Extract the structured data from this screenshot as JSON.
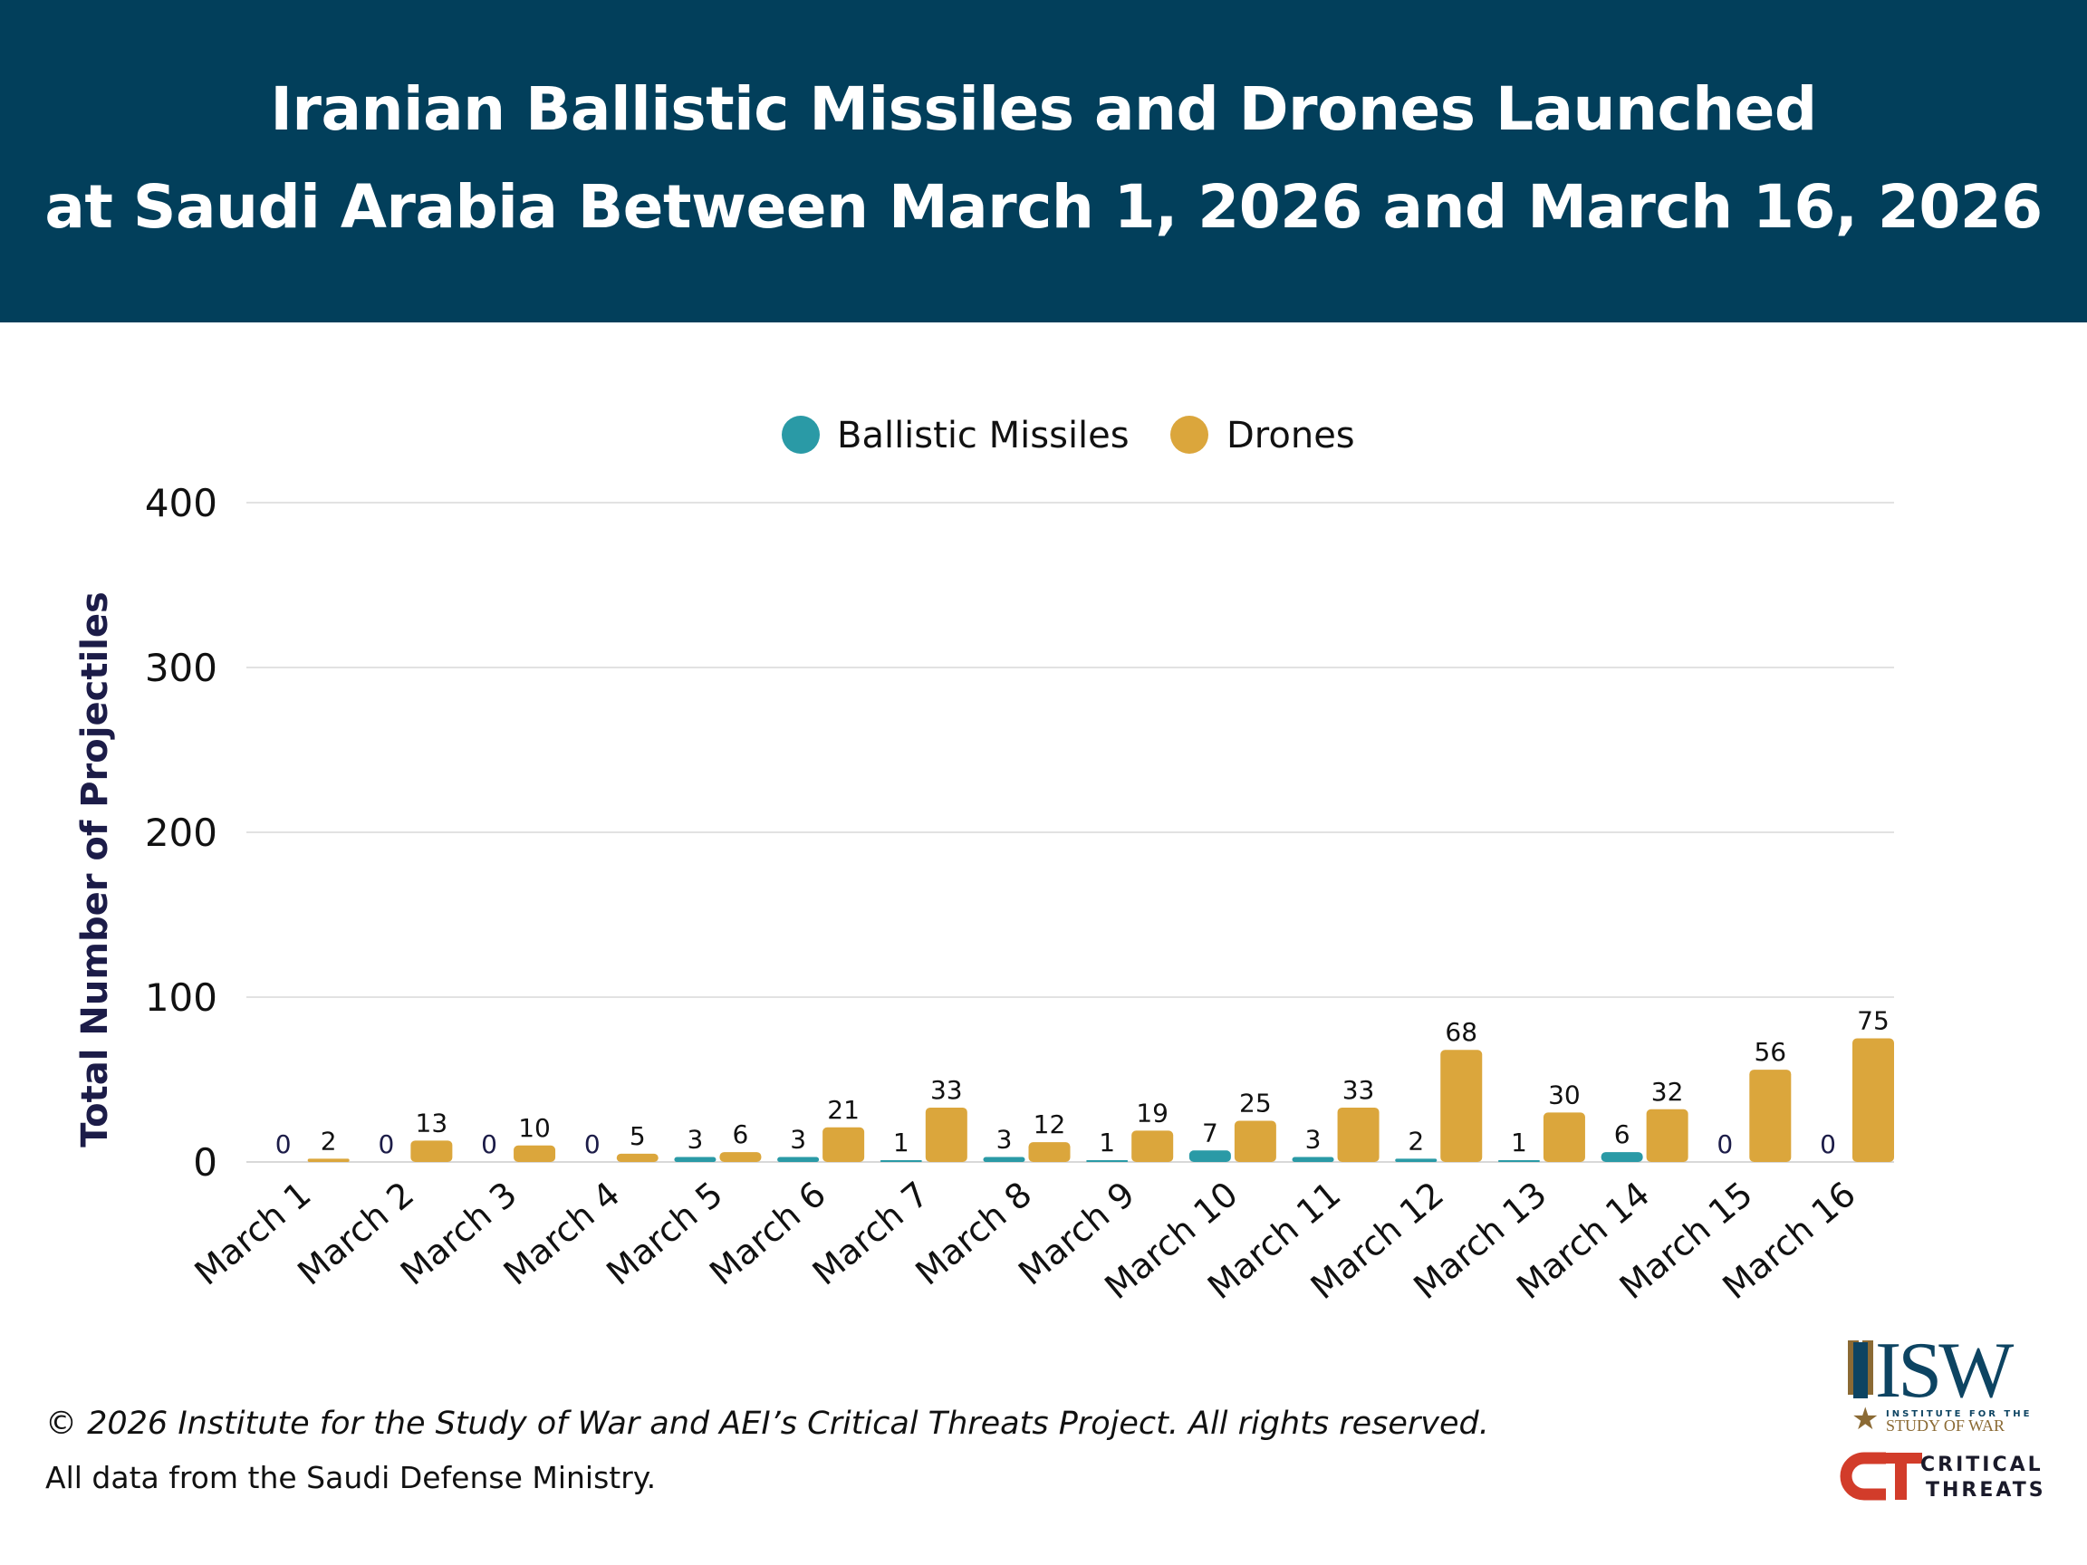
{
  "header": {
    "title_line1": "Iranian Ballistic Missiles and Drones Launched",
    "title_line2": "at Saudi Arabia Between March 1, 2026 and March 16, 2026"
  },
  "chart_data": {
    "type": "bar",
    "title": "Iranian Ballistic Missiles and Drones Launched at Saudi Arabia Between March 1, 2026 and March 16, 2026",
    "xlabel": "",
    "ylabel": "Total Number of Projectiles",
    "ylim": [
      0,
      400
    ],
    "yticks": [
      0,
      100,
      200,
      300,
      400
    ],
    "grid": true,
    "legend_placement": "top-center",
    "categories": [
      "March 1",
      "March 2",
      "March 3",
      "March 4",
      "March 5",
      "March 6",
      "March 7",
      "March 8",
      "March 9",
      "March 10",
      "March 11",
      "March 12",
      "March 13",
      "March 14",
      "March 15",
      "March 16"
    ],
    "series": [
      {
        "name": "Ballistic Missiles",
        "color": "#2a9aa6",
        "values": [
          0,
          0,
          0,
          0,
          3,
          3,
          1,
          3,
          1,
          7,
          3,
          2,
          1,
          6,
          0,
          0
        ]
      },
      {
        "name": "Drones",
        "color": "#dba63c",
        "values": [
          2,
          13,
          10,
          5,
          6,
          21,
          33,
          12,
          19,
          25,
          33,
          68,
          30,
          32,
          56,
          75
        ]
      }
    ]
  },
  "footer": {
    "copyright": "© 2026 Institute for the Study of War and AEI’s Critical Threats Project. All rights reserved.",
    "source": "All data from the Saudi Defense Ministry."
  },
  "logos": {
    "isw_text": "ISW",
    "isw_sub1": "INSTITUTE FOR THE",
    "isw_sub2": "STUDY OF WAR",
    "ct_line1": "CRITICAL",
    "ct_line2": "THREATS"
  },
  "colors": {
    "header_bg": "#023f5b",
    "missiles": "#2a9aa6",
    "drones": "#dba63c"
  }
}
